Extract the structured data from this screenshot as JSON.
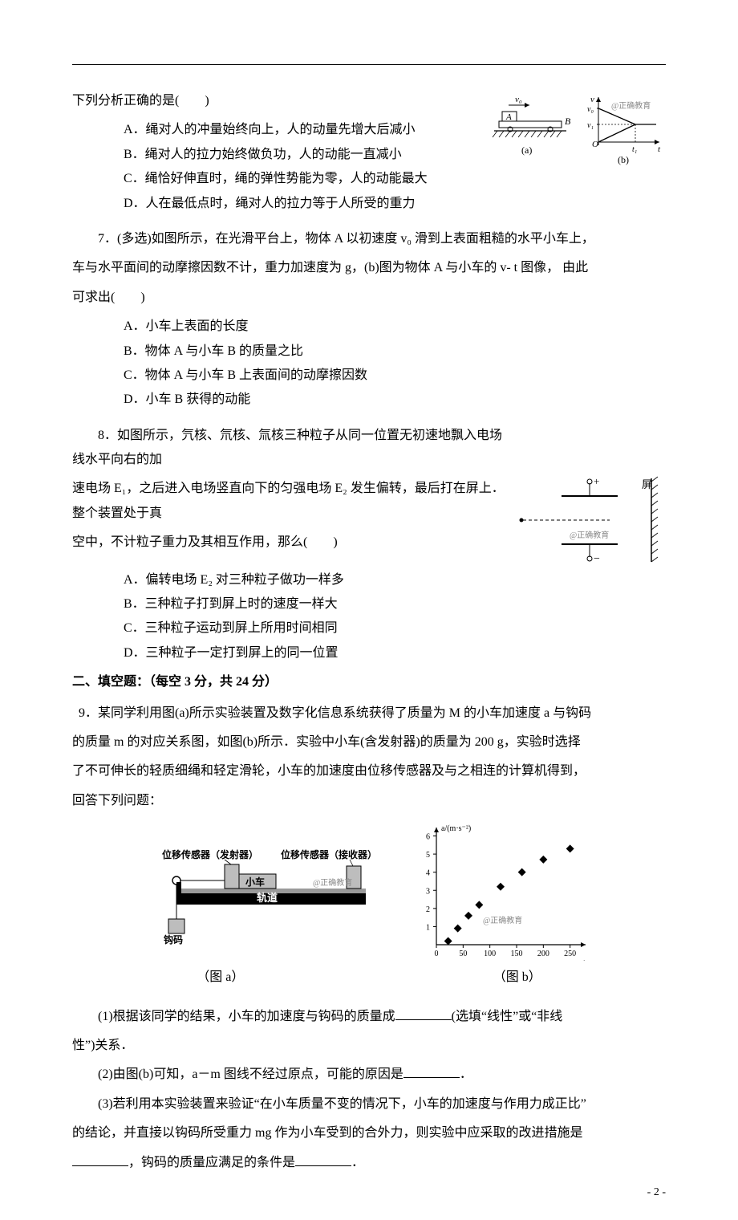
{
  "hr_color": "#000000",
  "q6": {
    "stem": "下列分析正确的是(　　)",
    "options": {
      "A": "A．绳对人的冲量始终向上，人的动量先增大后减小",
      "B": "B．绳对人的拉力始终做负功，人的动能一直减小",
      "C": "C．绳恰好伸直时，绳的弹性势能为零，人的动能最大",
      "D": "D．人在最低点时，绳对人的拉力等于人所受的重力"
    },
    "figure": {
      "type": "diagram-pair",
      "a_label": "(a)",
      "b_label": "(b)",
      "v0": "v₀",
      "A": "A",
      "B": "B",
      "axis_v": "v",
      "axis_t": "t",
      "v0_tick": "v₀",
      "v1_tick": "v₁",
      "t1_tick": "t₁",
      "O": "O",
      "watermark": "@正确教育",
      "colors": {
        "line": "#000000",
        "hatch": "#000000",
        "bg": "#ffffff",
        "watermark": "#8a8a8a"
      }
    }
  },
  "q7": {
    "stem_line1": "7．(多选)如图所示，在光滑平台上，物体 A 以初速度 v₀ 滑到上表面粗糙的水平小车上，",
    "stem_line2": "车与水平面间的动摩擦因数不计，重力加速度为 g，(b)图为物体 A 与小车的 v- t 图像， 由此",
    "stem_line3": "可求出(　　)",
    "options": {
      "A": "A．小车上表面的长度",
      "B": "B．物体 A 与小车 B 的质量之比",
      "C": "C．物体 A 与小车 B 上表面间的动摩擦因数",
      "D": "D．小车 B 获得的动能"
    }
  },
  "q8": {
    "stem_line1": "8．如图所示，氕核、氘核、氚核三种粒子从同一位置无初速地飘入电场线水平向右的加",
    "stem_line2": "速电场 E₁，之后进入电场竖直向下的匀强电场 E₂ 发生偏转，最后打在屏上．整个装置处于真",
    "stem_line3": "空中，不计粒子重力及其相互作用，那么(　　)",
    "options": {
      "A": "A．偏转电场 E₂ 对三种粒子做功一样多",
      "B": "B．三种粒子打到屏上时的速度一样大",
      "C": "C．三种粒子运动到屏上所用时间相同",
      "D": "D．三种粒子一定打到屏上的同一位置"
    },
    "figure": {
      "type": "electric-field",
      "plus": "+",
      "minus": "−",
      "screen_label": "屏",
      "watermark": "@正确教育",
      "colors": {
        "line": "#000000",
        "hatch": "#000000",
        "watermark": "#8a8a8a"
      }
    }
  },
  "section2": "二、填空题：（每空 3 分，共 24 分）",
  "q9": {
    "stem_line1": "9．某同学利用图(a)所示实验装置及数字化信息系统获得了质量为 M 的小车加速度 a 与钩码",
    "stem_line2": "的质量 m 的对应关系图，如图(b)所示．实验中小车(含发射器)的质量为 200 g，实验时选择",
    "stem_line3": "了不可伸长的轻质细绳和轻定滑轮，小车的加速度由位移传感器及与之相连的计算机得到，",
    "stem_line4": "回答下列问题：",
    "fig_a": {
      "type": "apparatus",
      "sensor_tx": "位移传感器（发射器）",
      "sensor_rx": "位移传感器（接收器）",
      "cart": "小车",
      "track": "轨道",
      "weight": "钩码",
      "watermark": "@正确教育",
      "colors": {
        "line": "#000000",
        "track_top": "#9a9a9a",
        "track_body": "#000000",
        "cart_fill": "#bdbdbd",
        "sensor_fill": "#bdbdbd",
        "bg": "#ffffff",
        "label_text": "#000000",
        "watermark": "#8a8a8a"
      },
      "caption": "（图 a）"
    },
    "fig_b": {
      "type": "scatter",
      "x_label": "m/g",
      "y_label": "a/(m·s⁻²)",
      "xlim": [
        0,
        270
      ],
      "ylim": [
        0,
        6.2
      ],
      "xticks": [
        0,
        50,
        100,
        150,
        200,
        250
      ],
      "xtick_labels": [
        "0",
        "50",
        "100",
        "150",
        "200",
        "250"
      ],
      "yticks": [
        1,
        2,
        3,
        4,
        5,
        6
      ],
      "ytick_labels": [
        "1",
        "2",
        "3",
        "4",
        "5",
        "6"
      ],
      "points": [
        [
          22,
          0.2
        ],
        [
          40,
          0.9
        ],
        [
          60,
          1.6
        ],
        [
          80,
          2.2
        ],
        [
          120,
          3.2
        ],
        [
          160,
          4.0
        ],
        [
          200,
          4.7
        ],
        [
          250,
          5.3
        ]
      ],
      "marker": "diamond",
      "marker_size": 5,
      "marker_color": "#000000",
      "axis_color": "#000000",
      "tick_fontsize": 10,
      "label_fontsize": 10,
      "watermark": "@正确教育",
      "watermark_color": "#8a8a8a",
      "caption": "（图 b）"
    },
    "sub1_a": "(1)根据该同学的结果，小车的加速度与钩码的质量成",
    "sub1_b": "(选填“线性”或“非线",
    "sub1_c": "性”)关系．",
    "sub2_a": "(2)由图(b)可知，a－m 图线不经过原点，可能的原因是",
    "sub2_b": "．",
    "sub3_a": "(3)若利用本实验装置来验证“在小车质量不变的情况下，小车的加速度与作用力成正比”",
    "sub3_b": "的结论，并直接以钩码所受重力 mg 作为小车受到的合外力，则实验中应采取的改进措施是",
    "sub3_c": "，钩码的质量应满足的条件是",
    "sub3_d": "．"
  },
  "page_number": "- 2 -"
}
